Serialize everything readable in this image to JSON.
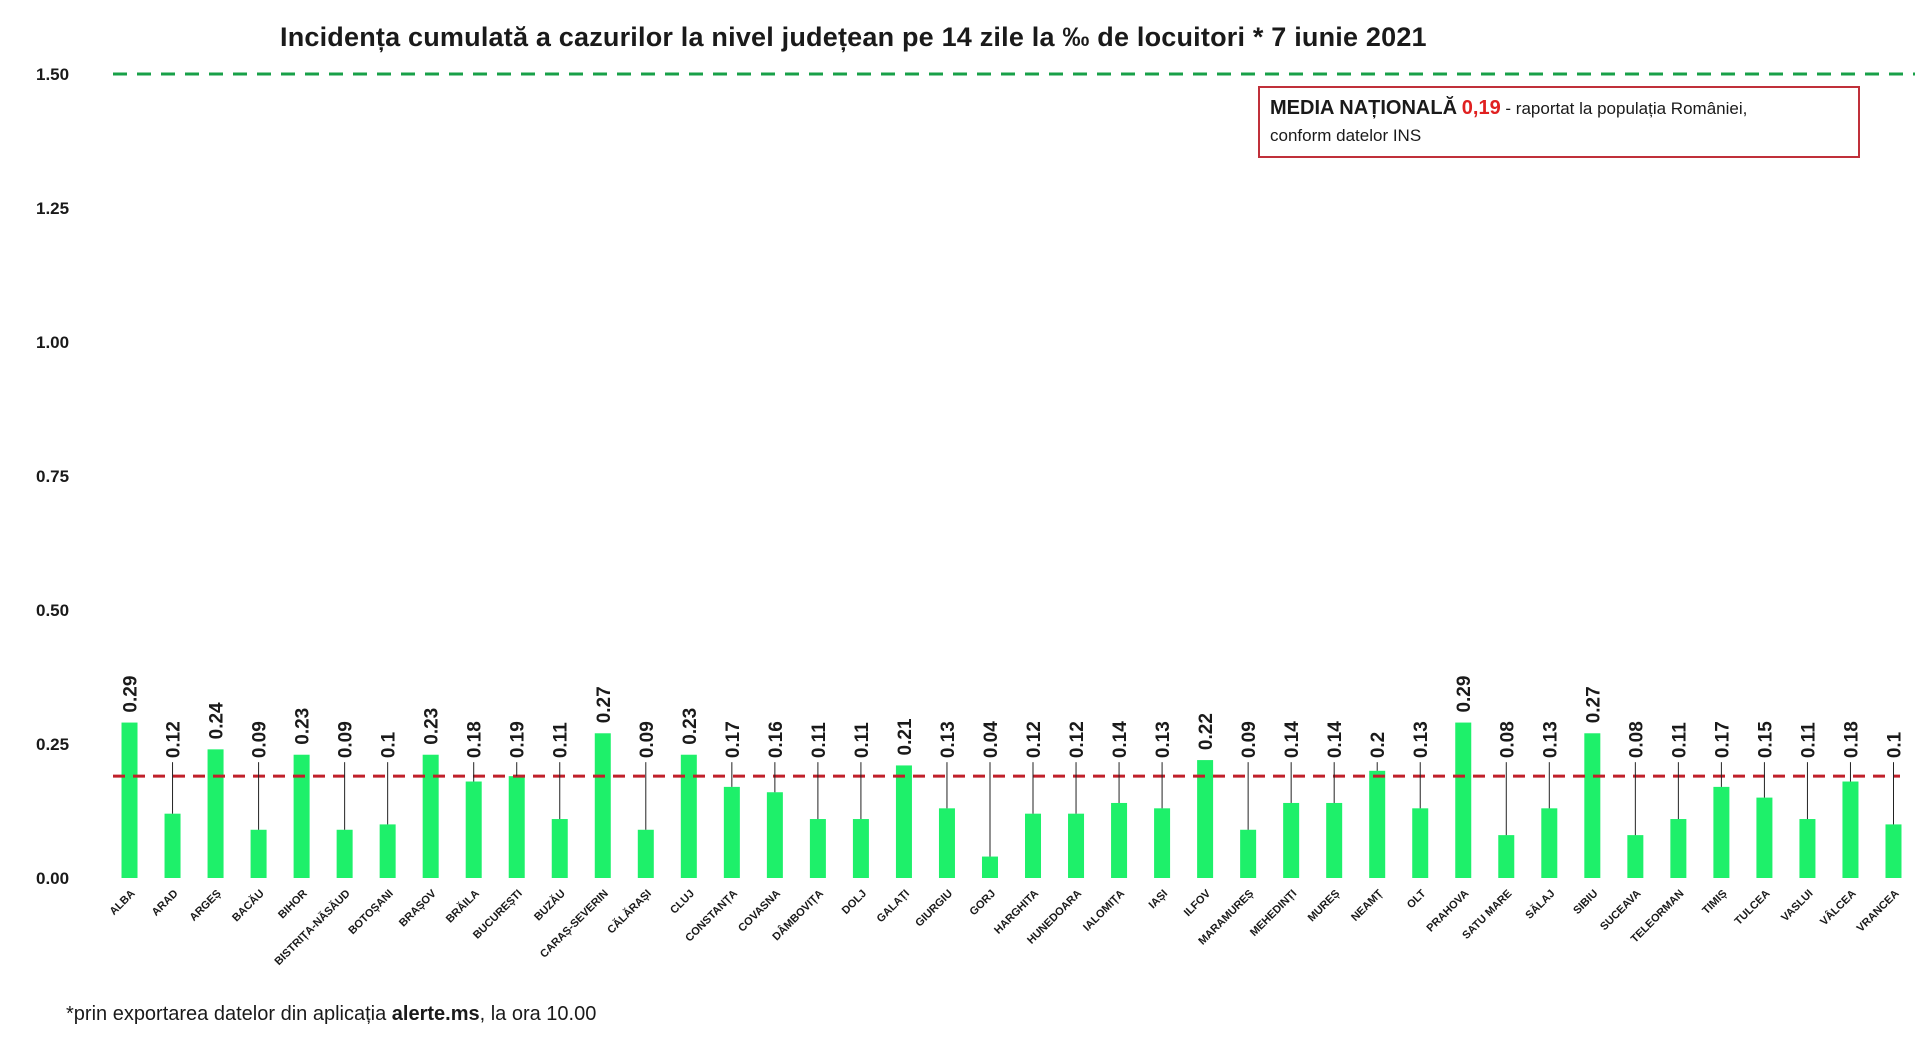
{
  "chart_data": {
    "type": "bar",
    "title": "Incidența cumulată a cazurilor la nivel județean pe 14 zile la ‰ de locuitori *  7 iunie 2021",
    "xlabel": "",
    "ylabel": "",
    "ylim": [
      0,
      1.5
    ],
    "yticks": [
      "0.00",
      "0.25",
      "0.50",
      "0.75",
      "1.00",
      "1.25",
      "1.50"
    ],
    "ytick_values": [
      0,
      0.25,
      0.5,
      0.75,
      1.0,
      1.25,
      1.5
    ],
    "threshold_line": 1.5,
    "national_average": 0.19,
    "grid": false,
    "legend_position": "top-right",
    "categories": [
      "ALBA",
      "ARAD",
      "ARGEȘ",
      "BACĂU",
      "BIHOR",
      "BISTRIȚA-NĂSĂUD",
      "BOTOȘANI",
      "BRAȘOV",
      "BRĂILA",
      "BUCUREȘTI",
      "BUZĂU",
      "CARAȘ-SEVERIN",
      "CĂLĂRAȘI",
      "CLUJ",
      "CONSTANȚA",
      "COVASNA",
      "DÂMBOVIȚA",
      "DOLJ",
      "GALAȚI",
      "GIURGIU",
      "GORJ",
      "HARGHITA",
      "HUNEDOARA",
      "IALOMIȚA",
      "IAȘI",
      "ILFOV",
      "MARAMUREȘ",
      "MEHEDINȚI",
      "MUREȘ",
      "NEAMȚ",
      "OLT",
      "PRAHOVA",
      "SATU MARE",
      "SĂLAJ",
      "SIBIU",
      "SUCEAVA",
      "TELEORMAN",
      "TIMIȘ",
      "TULCEA",
      "VASLUI",
      "VÂLCEA",
      "VRANCEA"
    ],
    "values": [
      0.29,
      0.12,
      0.24,
      0.09,
      0.23,
      0.09,
      0.1,
      0.23,
      0.18,
      0.19,
      0.11,
      0.27,
      0.09,
      0.23,
      0.17,
      0.16,
      0.11,
      0.11,
      0.21,
      0.13,
      0.04,
      0.12,
      0.12,
      0.14,
      0.13,
      0.22,
      0.09,
      0.14,
      0.14,
      0.2,
      0.13,
      0.29,
      0.08,
      0.13,
      0.27,
      0.08,
      0.11,
      0.17,
      0.15,
      0.11,
      0.18,
      0.1
    ],
    "data_labels": [
      "0.29",
      "0.12",
      "0.24",
      "0.09",
      "0.23",
      "0.09",
      "0.1",
      "0.23",
      "0.18",
      "0.19",
      "0.11",
      "0.27",
      "0.09",
      "0.23",
      "0.17",
      "0.16",
      "0.11",
      "0.11",
      "0.21",
      "0.13",
      "0.04",
      "0.12",
      "0.12",
      "0.14",
      "0.13",
      "0.22",
      "0.09",
      "0.14",
      "0.14",
      "0.2",
      "0.13",
      "0.29",
      "0.08",
      "0.13",
      "0.27",
      "0.08",
      "0.11",
      "0.17",
      "0.15",
      "0.11",
      "0.18",
      "0.1"
    ]
  },
  "legend": {
    "label": "MEDIA NAȚIONALĂ",
    "value": "0,19",
    "text_line1": " - raportat la populația României,",
    "text_line2": "conform datelor INS"
  },
  "footnote": {
    "prefix": "*prin exportarea datelor din aplicația ",
    "bold": "alerte.ms",
    "suffix": ", la ora 10.00"
  },
  "colors": {
    "bar": "#1ef06a",
    "threshold_line": "#18a048",
    "average_line": "#c0202a",
    "legend_border": "#c0303a",
    "legend_value": "#e02020",
    "text": "#1a1a1a"
  }
}
